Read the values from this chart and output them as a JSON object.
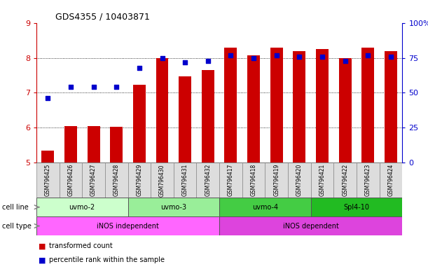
{
  "title": "GDS4355 / 10403871",
  "samples": [
    "GSM796425",
    "GSM796426",
    "GSM796427",
    "GSM796428",
    "GSM796429",
    "GSM796430",
    "GSM796431",
    "GSM796432",
    "GSM796417",
    "GSM796418",
    "GSM796419",
    "GSM796420",
    "GSM796421",
    "GSM796422",
    "GSM796423",
    "GSM796424"
  ],
  "transformed_count": [
    5.35,
    6.05,
    6.05,
    6.02,
    7.22,
    8.0,
    7.48,
    7.65,
    8.3,
    8.08,
    8.3,
    8.2,
    8.25,
    8.0,
    8.3,
    8.2
  ],
  "percentile_rank": [
    46,
    54,
    54,
    54,
    68,
    75,
    72,
    73,
    77,
    75,
    77,
    76,
    76,
    73,
    77,
    76
  ],
  "bar_color": "#cc0000",
  "dot_color": "#0000cc",
  "ylim_left": [
    5,
    9
  ],
  "ylim_right": [
    0,
    100
  ],
  "yticks_left": [
    5,
    6,
    7,
    8,
    9
  ],
  "yticks_right": [
    0,
    25,
    50,
    75,
    100
  ],
  "yticklabels_right": [
    "0",
    "25",
    "50",
    "75",
    "100%"
  ],
  "grid_values": [
    6,
    7,
    8
  ],
  "cell_lines": [
    {
      "label": "uvmo-2",
      "start": 0,
      "end": 4,
      "color": "#ccffcc"
    },
    {
      "label": "uvmo-3",
      "start": 4,
      "end": 8,
      "color": "#99ee99"
    },
    {
      "label": "uvmo-4",
      "start": 8,
      "end": 12,
      "color": "#44cc44"
    },
    {
      "label": "Spl4-10",
      "start": 12,
      "end": 16,
      "color": "#22bb22"
    }
  ],
  "cell_types": [
    {
      "label": "iNOS independent",
      "start": 0,
      "end": 8,
      "color": "#ff66ff"
    },
    {
      "label": "iNOS dependent",
      "start": 8,
      "end": 16,
      "color": "#dd44dd"
    }
  ],
  "legend_items": [
    {
      "label": "transformed count",
      "color": "#cc0000"
    },
    {
      "label": "percentile rank within the sample",
      "color": "#0000cc"
    }
  ],
  "bar_color_red": "#cc0000",
  "ylabel_left_color": "#cc0000",
  "ylabel_right_color": "#0000cc",
  "bg_color": "#ffffff",
  "sample_box_color": "#dddddd",
  "bar_width": 0.55,
  "xlim": [
    -0.5,
    15.5
  ]
}
